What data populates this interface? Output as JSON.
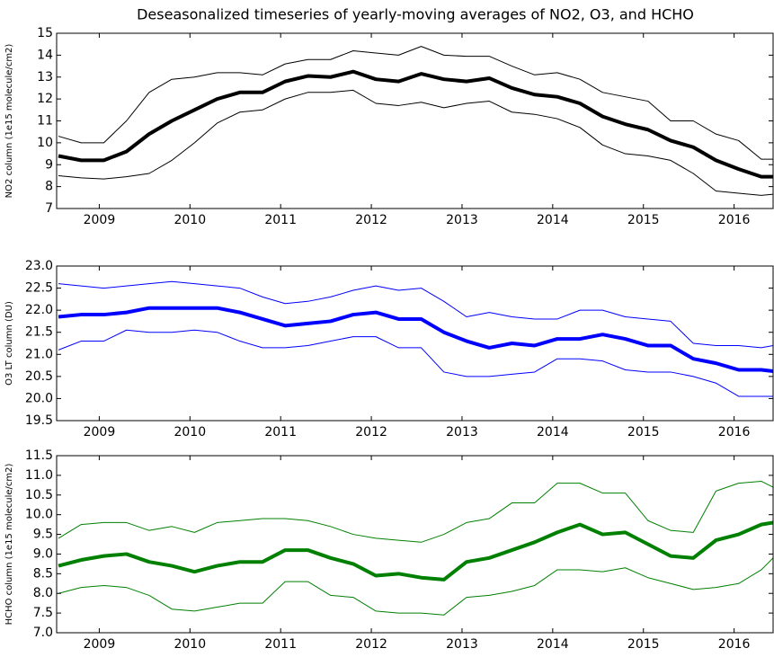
{
  "title": "Deseasonalized timeseries of yearly-moving averages of NO2, O3, and HCHO",
  "chart_data": [
    {
      "type": "line",
      "ylabel": "NO2 column (1e15 molecule/cm2)",
      "x": [
        2008.55,
        2008.8,
        2009.05,
        2009.3,
        2009.55,
        2009.8,
        2010.05,
        2010.3,
        2010.55,
        2010.8,
        2011.05,
        2011.3,
        2011.55,
        2011.8,
        2012.05,
        2012.3,
        2012.55,
        2012.8,
        2013.05,
        2013.3,
        2013.55,
        2013.8,
        2014.05,
        2014.3,
        2014.55,
        2014.8,
        2015.05,
        2015.3,
        2015.55,
        2015.8,
        2016.05,
        2016.3,
        2016.43
      ],
      "series": [
        {
          "color": "#000000",
          "linewidth": 4,
          "values": [
            9.4,
            9.2,
            9.2,
            9.6,
            10.4,
            11.0,
            11.5,
            12.0,
            12.3,
            12.3,
            12.8,
            13.05,
            13.0,
            13.25,
            12.9,
            12.8,
            13.15,
            12.9,
            12.8,
            12.95,
            12.5,
            12.2,
            12.1,
            11.8,
            11.2,
            10.85,
            10.6,
            10.1,
            9.8,
            9.2,
            8.8,
            8.45,
            8.45
          ]
        },
        {
          "color": "#000000",
          "linewidth": 1,
          "values": [
            10.3,
            10.0,
            10.0,
            11.0,
            12.3,
            12.9,
            13.0,
            13.2,
            13.2,
            13.1,
            13.6,
            13.8,
            13.8,
            14.2,
            14.1,
            14.0,
            14.4,
            14.0,
            13.95,
            13.95,
            13.5,
            13.1,
            13.2,
            12.9,
            12.3,
            12.1,
            11.9,
            11.0,
            11.0,
            10.4,
            10.1,
            9.25,
            9.25
          ]
        },
        {
          "color": "#000000",
          "linewidth": 1,
          "values": [
            8.5,
            8.4,
            8.35,
            8.45,
            8.6,
            9.2,
            10.0,
            10.9,
            11.4,
            11.5,
            12.0,
            12.3,
            12.3,
            12.4,
            11.8,
            11.7,
            11.85,
            11.6,
            11.8,
            11.9,
            11.4,
            11.3,
            11.1,
            10.7,
            9.9,
            9.5,
            9.4,
            9.2,
            8.6,
            7.8,
            7.7,
            7.6,
            7.65
          ]
        }
      ],
      "xlim": [
        2008.53,
        2016.43
      ],
      "xticks": [
        2009,
        2010,
        2011,
        2012,
        2013,
        2014,
        2015,
        2016
      ],
      "ylim": [
        7,
        15
      ],
      "yticks": [
        7,
        8,
        9,
        10,
        11,
        12,
        13,
        14,
        15
      ]
    },
    {
      "type": "line",
      "ylabel": "O3 LT column (DU)",
      "x": [
        2008.55,
        2008.8,
        2009.05,
        2009.3,
        2009.55,
        2009.8,
        2010.05,
        2010.3,
        2010.55,
        2010.8,
        2011.05,
        2011.3,
        2011.55,
        2011.8,
        2012.05,
        2012.3,
        2012.55,
        2012.8,
        2013.05,
        2013.3,
        2013.55,
        2013.8,
        2014.05,
        2014.3,
        2014.55,
        2014.8,
        2015.05,
        2015.3,
        2015.55,
        2015.8,
        2016.05,
        2016.3,
        2016.43
      ],
      "series": [
        {
          "color": "#0000ff",
          "linewidth": 4,
          "values": [
            21.85,
            21.9,
            21.9,
            21.95,
            22.05,
            22.05,
            22.05,
            22.05,
            21.95,
            21.8,
            21.65,
            21.7,
            21.75,
            21.9,
            21.95,
            21.8,
            21.8,
            21.5,
            21.3,
            21.15,
            21.25,
            21.2,
            21.35,
            21.35,
            21.45,
            21.35,
            21.2,
            21.2,
            20.9,
            20.8,
            20.65,
            20.65,
            20.62
          ]
        },
        {
          "color": "#0000ff",
          "linewidth": 1,
          "values": [
            22.6,
            22.55,
            22.5,
            22.55,
            22.6,
            22.65,
            22.6,
            22.55,
            22.5,
            22.3,
            22.15,
            22.2,
            22.3,
            22.45,
            22.55,
            22.45,
            22.5,
            22.2,
            21.85,
            21.95,
            21.85,
            21.8,
            21.8,
            22.0,
            22.0,
            21.85,
            21.8,
            21.75,
            21.25,
            21.2,
            21.2,
            21.15,
            21.2
          ]
        },
        {
          "color": "#0000ff",
          "linewidth": 1,
          "values": [
            21.1,
            21.3,
            21.3,
            21.55,
            21.5,
            21.5,
            21.55,
            21.5,
            21.3,
            21.15,
            21.15,
            21.2,
            21.3,
            21.4,
            21.4,
            21.15,
            21.15,
            20.6,
            20.5,
            20.5,
            20.55,
            20.6,
            20.9,
            20.9,
            20.85,
            20.65,
            20.6,
            20.6,
            20.5,
            20.35,
            20.05,
            20.05,
            20.05
          ]
        }
      ],
      "xlim": [
        2008.53,
        2016.43
      ],
      "xticks": [
        2009,
        2010,
        2011,
        2012,
        2013,
        2014,
        2015,
        2016
      ],
      "ylim": [
        19.5,
        23
      ],
      "yticks": [
        19.5,
        {
          "value": 20,
          "label": "20.0"
        },
        20.5,
        {
          "value": 21,
          "label": "21.0"
        },
        21.5,
        {
          "value": 22,
          "label": "22.0"
        },
        22.5,
        {
          "value": 23,
          "label": "23.0"
        }
      ]
    },
    {
      "type": "line",
      "ylabel": "HCHO column (1e15 molecule/cm2)",
      "x": [
        2008.55,
        2008.8,
        2009.05,
        2009.3,
        2009.55,
        2009.8,
        2010.05,
        2010.3,
        2010.55,
        2010.8,
        2011.05,
        2011.3,
        2011.55,
        2011.8,
        2012.05,
        2012.3,
        2012.55,
        2012.8,
        2013.05,
        2013.3,
        2013.55,
        2013.8,
        2014.05,
        2014.3,
        2014.55,
        2014.8,
        2015.05,
        2015.3,
        2015.55,
        2015.8,
        2016.05,
        2016.3,
        2016.43
      ],
      "series": [
        {
          "color": "#008000",
          "linewidth": 4,
          "values": [
            8.7,
            8.85,
            8.95,
            9.0,
            8.8,
            8.7,
            8.55,
            8.7,
            8.8,
            8.8,
            9.1,
            9.1,
            8.9,
            8.75,
            8.45,
            8.5,
            8.4,
            8.35,
            8.8,
            8.9,
            9.1,
            9.3,
            9.55,
            9.75,
            9.5,
            9.55,
            9.25,
            8.95,
            8.9,
            9.35,
            9.5,
            9.75,
            9.8
          ]
        },
        {
          "color": "#008000",
          "linewidth": 1,
          "values": [
            9.4,
            9.75,
            9.8,
            9.8,
            9.6,
            9.7,
            9.55,
            9.8,
            9.85,
            9.9,
            9.9,
            9.85,
            9.7,
            9.5,
            9.4,
            9.35,
            9.3,
            9.5,
            9.8,
            9.9,
            10.3,
            10.3,
            10.8,
            10.8,
            10.55,
            10.55,
            9.85,
            9.6,
            9.55,
            10.6,
            10.8,
            10.85,
            10.7
          ]
        },
        {
          "color": "#008000",
          "linewidth": 1,
          "values": [
            8.0,
            8.15,
            8.2,
            8.15,
            7.95,
            7.6,
            7.55,
            7.65,
            7.75,
            7.75,
            8.3,
            8.3,
            7.95,
            7.9,
            7.55,
            7.5,
            7.5,
            7.45,
            7.9,
            7.95,
            8.05,
            8.2,
            8.6,
            8.6,
            8.55,
            8.65,
            8.4,
            8.25,
            8.1,
            8.15,
            8.25,
            8.6,
            8.9
          ]
        }
      ],
      "xlim": [
        2008.53,
        2016.43
      ],
      "xticks": [
        2009,
        2010,
        2011,
        2012,
        2013,
        2014,
        2015,
        2016
      ],
      "ylim": [
        7,
        11.5
      ],
      "yticks": [
        {
          "value": 7,
          "label": "7.0"
        },
        7.5,
        {
          "value": 8,
          "label": "8.0"
        },
        8.5,
        {
          "value": 9,
          "label": "9.0"
        },
        9.5,
        {
          "value": 10,
          "label": "10.0"
        },
        10.5,
        {
          "value": 11,
          "label": "11.0"
        },
        11.5
      ]
    }
  ]
}
